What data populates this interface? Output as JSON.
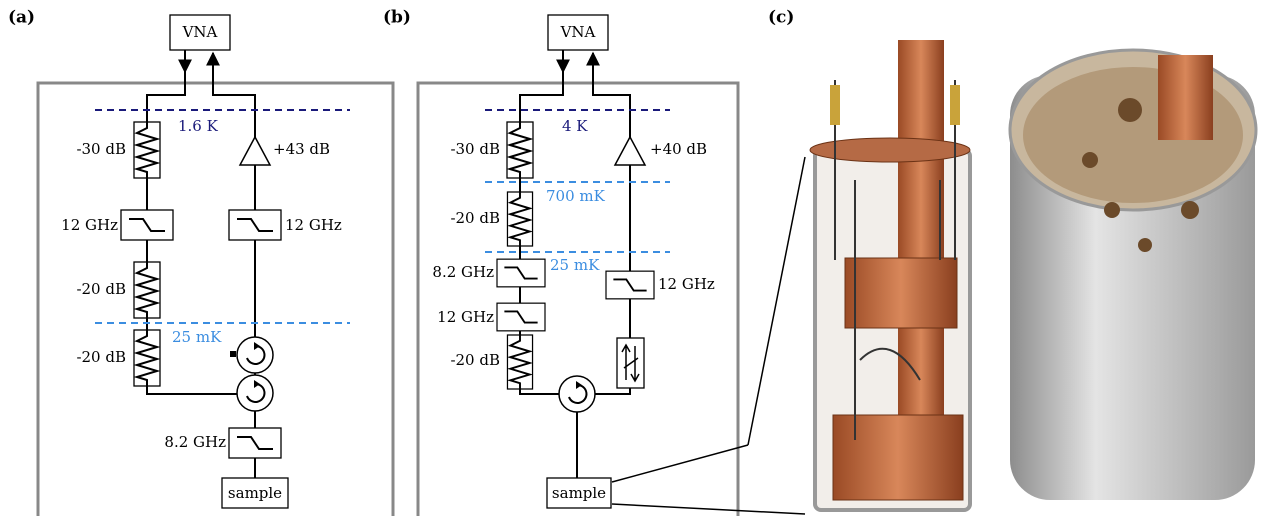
{
  "panel_a": {
    "label": "(a)",
    "instrument": "VNA",
    "stage_1": "1.6 K",
    "atten_1": "-30 dB",
    "amp": "+43 dB",
    "filter_left": "12 GHz",
    "filter_right": "12 GHz",
    "atten_2": "-20 dB",
    "stage_2": "25 mK",
    "atten_3": "-20 dB",
    "filter_bottom": "8.2 GHz",
    "sample": "sample"
  },
  "panel_b": {
    "label": "(b)",
    "instrument": "VNA",
    "stage_1": "4 K",
    "atten_1": "-30 dB",
    "amp": "+40 dB",
    "stage_2": "700 mK",
    "atten_2": "-20 dB",
    "stage_3": "25 mK",
    "filter_left_1": "8.2 GHz",
    "filter_left_2": "12 GHz",
    "filter_right": "12 GHz",
    "atten_3": "-20 dB",
    "sample": "sample"
  },
  "panel_c": {
    "label": "(c)"
  }
}
